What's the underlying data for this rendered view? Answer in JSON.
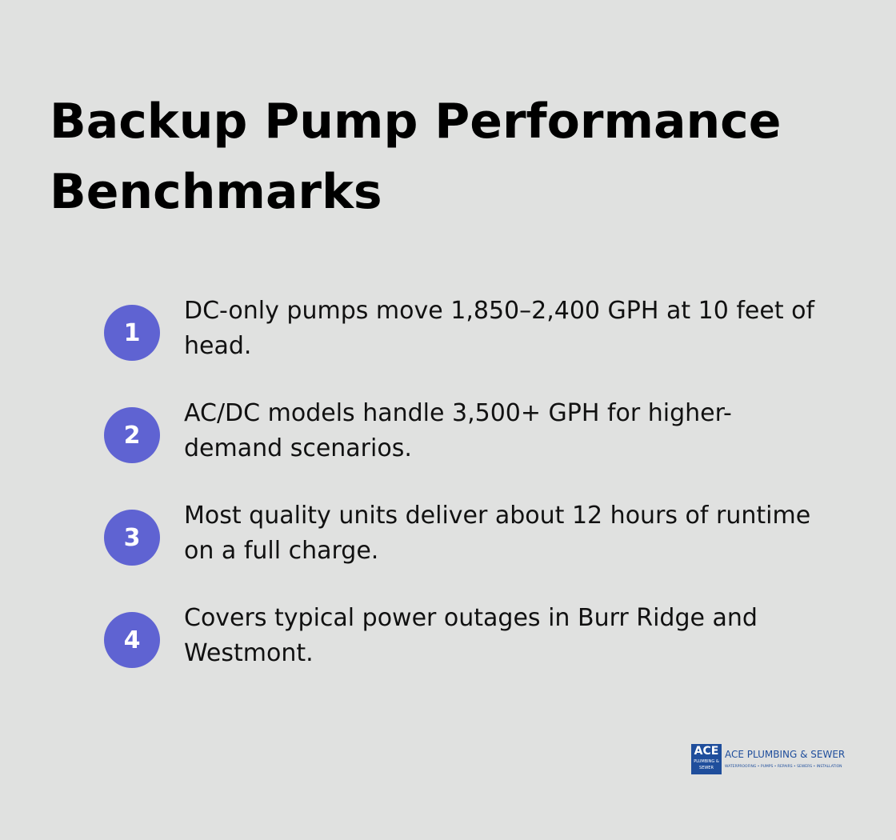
{
  "header": {
    "title": "Backup Pump Performance Benchmarks"
  },
  "items": [
    {
      "number": "1",
      "text": "DC-only pumps move 1,850–2,400 GPH at 10 feet of head."
    },
    {
      "number": "2",
      "text": "AC/DC models handle 3,500+ GPH for higher-demand scenarios."
    },
    {
      "number": "3",
      "text": "Most quality units deliver about 12 hours of runtime on a full charge."
    },
    {
      "number": "4",
      "text": "Covers typical power outages in Burr Ridge and Westmont."
    }
  ],
  "logo": {
    "badge_top": "ACE",
    "badge_bottom": "PLUMBING & SEWER",
    "name": "ACE PLUMBING & SEWER",
    "tagline": "WATERPROOFING • PUMPS • REPAIRS • SEWERS • INSTALLATION"
  }
}
